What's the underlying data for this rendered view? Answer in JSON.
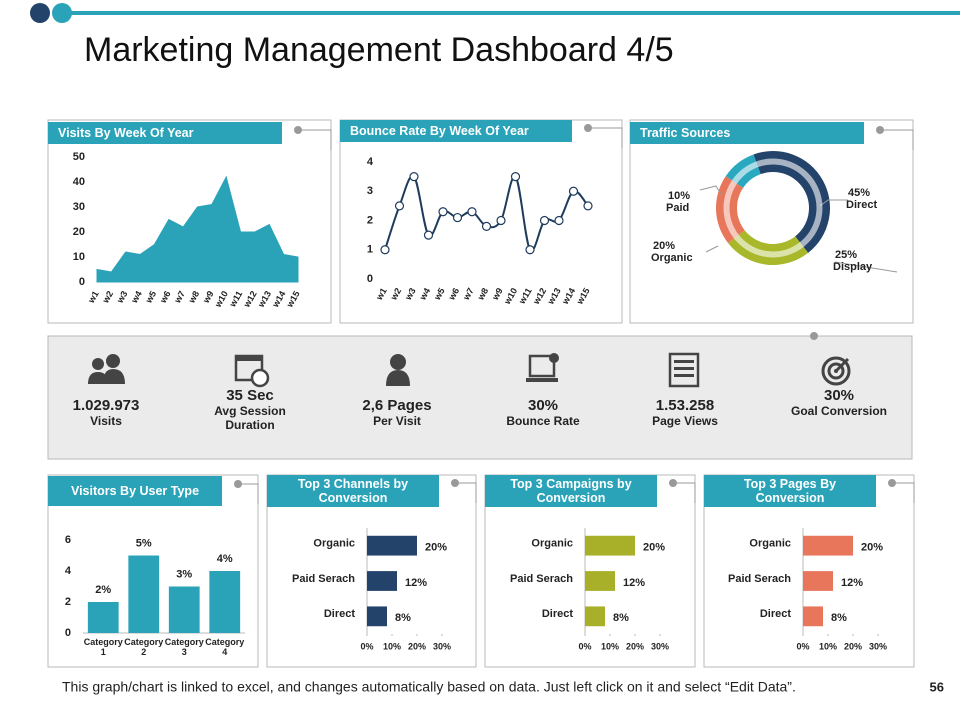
{
  "header": {
    "title": "Marketing Management Dashboard 4/5"
  },
  "chart_data": [
    {
      "type": "area",
      "title": "Visits By Week Of Year",
      "categories": [
        "w1",
        "w2",
        "w3",
        "w4",
        "w5",
        "w6",
        "w7",
        "w8",
        "w9",
        "w10",
        "w11",
        "w12",
        "w13",
        "w14",
        "w15"
      ],
      "values": [
        5,
        4,
        12,
        11,
        15,
        25,
        22,
        30,
        31,
        42,
        20,
        20,
        23,
        11,
        10
      ],
      "color": "#2aa3b8",
      "ylim": [
        0,
        50
      ],
      "yticks": [
        0,
        10,
        20,
        30,
        40,
        50
      ]
    },
    {
      "type": "line",
      "title": "Bounce Rate By Week Of Year",
      "categories": [
        "w1",
        "w2",
        "w3",
        "w4",
        "w5",
        "w6",
        "w7",
        "w8",
        "w9",
        "w10",
        "w11",
        "w12",
        "w13",
        "w14",
        "w15"
      ],
      "values": [
        1,
        2.5,
        3.5,
        1.5,
        2.3,
        2.1,
        2.3,
        1.8,
        2,
        3.5,
        1,
        2,
        2,
        3,
        2.5
      ],
      "color": "#1f3b5c",
      "ylim": [
        0,
        4
      ],
      "yticks": [
        0,
        1,
        2,
        3,
        4
      ]
    },
    {
      "type": "pie",
      "title": "Traffic Sources",
      "categories": [
        "Direct",
        "Display",
        "Organic",
        "Paid"
      ],
      "values": [
        45,
        25,
        20,
        10
      ],
      "value_labels": [
        "45%",
        "25%",
        "20%",
        "10%"
      ],
      "colors": [
        "#24436a",
        "#a8b82a",
        "#e8765a",
        "#2aa8c0"
      ]
    },
    {
      "type": "bar",
      "title": "Visitors By User Type",
      "categories": [
        "Category 1",
        "Category 2",
        "Category 3",
        "Category 4"
      ],
      "values": [
        2,
        5,
        3,
        4
      ],
      "value_labels": [
        "2%",
        "5%",
        "3%",
        "4%"
      ],
      "color": "#2aa3b8",
      "ylim": [
        0,
        6
      ],
      "yticks": [
        0,
        2,
        4,
        6
      ]
    },
    {
      "type": "hbar",
      "title": "Top 3 Channels by Conversion",
      "categories": [
        "Organic",
        "Paid Serach",
        "Direct"
      ],
      "values": [
        20,
        12,
        8
      ],
      "value_labels": [
        "20%",
        "12%",
        "8%"
      ],
      "color": "#24436a",
      "xlim": [
        0,
        30
      ],
      "xticks": [
        {
          "value": 0,
          "label": "0%"
        },
        {
          "value": 10,
          "label": "10%"
        },
        {
          "value": 20,
          "label": "20%"
        },
        {
          "value": 30,
          "label": "30%"
        }
      ]
    },
    {
      "type": "hbar",
      "title": "Top 3 Campaigns by Conversion",
      "categories": [
        "Organic",
        "Paid Serach",
        "Direct"
      ],
      "values": [
        20,
        12,
        8
      ],
      "value_labels": [
        "20%",
        "12%",
        "8%"
      ],
      "color": "#a8b02a",
      "xlim": [
        0,
        30
      ],
      "xticks": [
        {
          "value": 0,
          "label": "0%"
        },
        {
          "value": 10,
          "label": "10%"
        },
        {
          "value": 20,
          "label": "20%"
        },
        {
          "value": 30,
          "label": "30%"
        }
      ]
    },
    {
      "type": "hbar",
      "title": "Top 3 Pages By Conversion",
      "categories": [
        "Organic",
        "Paid Serach",
        "Direct"
      ],
      "values": [
        20,
        12,
        8
      ],
      "value_labels": [
        "20%",
        "12%",
        "8%"
      ],
      "color": "#e8765a",
      "xlim": [
        0,
        30
      ],
      "xticks": [
        {
          "value": 0,
          "label": "0%"
        },
        {
          "value": 10,
          "label": "10%"
        },
        {
          "value": 20,
          "label": "20%"
        },
        {
          "value": 30,
          "label": "30%"
        }
      ]
    }
  ],
  "kpis": [
    {
      "value": "1.029.973",
      "label": "Visits"
    },
    {
      "value": "35 Sec",
      "label": "Avg Session Duration"
    },
    {
      "value": "2,6 Pages",
      "label": "Per Visit"
    },
    {
      "value": "30%",
      "label": "Bounce Rate"
    },
    {
      "value": "1.53.258",
      "label": "Page Views"
    },
    {
      "value": "30%",
      "label": "Goal Conversion"
    }
  ],
  "footer": {
    "note": "This graph/chart is linked to excel, and changes automatically  based on data. Just left click on it and select “Edit Data”.",
    "page": "56"
  }
}
